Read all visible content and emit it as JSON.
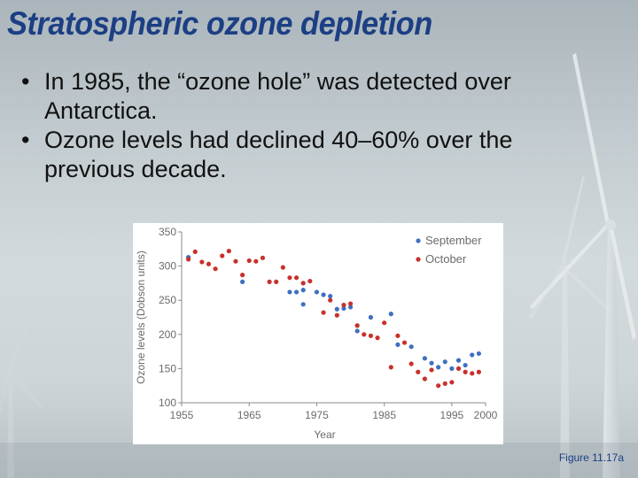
{
  "slide": {
    "title": "Stratospheric ozone depletion",
    "bullets": [
      " In 1985, the “ozone hole” was detected over Antarctica.",
      "Ozone levels had declined 40–60% over the previous decade."
    ],
    "figure_caption": "Figure 11.17a"
  },
  "chart_data": {
    "type": "scatter",
    "title": "",
    "xlabel": "Year",
    "ylabel": "Ozone levels (Dobson units)",
    "xlim": [
      1955,
      2000
    ],
    "ylim": [
      100,
      350
    ],
    "xticks": [
      1955,
      1965,
      1975,
      1985,
      1995,
      2000
    ],
    "yticks": [
      100,
      150,
      200,
      250,
      300,
      350
    ],
    "grid": false,
    "legend_position": "top-right",
    "series": [
      {
        "name": "September",
        "color": "#3f6fc0",
        "points": [
          [
            1956,
            313
          ],
          [
            1964,
            277
          ],
          [
            1971,
            262
          ],
          [
            1972,
            262
          ],
          [
            1973,
            244
          ],
          [
            1973,
            265
          ],
          [
            1975,
            262
          ],
          [
            1976,
            258
          ],
          [
            1977,
            256
          ],
          [
            1978,
            237
          ],
          [
            1979,
            238
          ],
          [
            1980,
            240
          ],
          [
            1981,
            205
          ],
          [
            1983,
            225
          ],
          [
            1986,
            230
          ],
          [
            1987,
            185
          ],
          [
            1989,
            182
          ],
          [
            1991,
            165
          ],
          [
            1992,
            158
          ],
          [
            1993,
            152
          ],
          [
            1994,
            160
          ],
          [
            1995,
            150
          ],
          [
            1996,
            162
          ],
          [
            1997,
            155
          ],
          [
            1998,
            170
          ],
          [
            1999,
            172
          ]
        ]
      },
      {
        "name": "October",
        "color": "#c8302c",
        "points": [
          [
            1956,
            310
          ],
          [
            1957,
            321
          ],
          [
            1958,
            306
          ],
          [
            1959,
            303
          ],
          [
            1960,
            296
          ],
          [
            1961,
            315
          ],
          [
            1962,
            322
          ],
          [
            1963,
            307
          ],
          [
            1964,
            287
          ],
          [
            1965,
            308
          ],
          [
            1966,
            307
          ],
          [
            1967,
            312
          ],
          [
            1968,
            277
          ],
          [
            1969,
            277
          ],
          [
            1970,
            298
          ],
          [
            1971,
            283
          ],
          [
            1972,
            283
          ],
          [
            1973,
            275
          ],
          [
            1974,
            278
          ],
          [
            1976,
            232
          ],
          [
            1977,
            250
          ],
          [
            1978,
            228
          ],
          [
            1979,
            243
          ],
          [
            1980,
            245
          ],
          [
            1981,
            213
          ],
          [
            1982,
            200
          ],
          [
            1983,
            198
          ],
          [
            1984,
            195
          ],
          [
            1985,
            217
          ],
          [
            1986,
            152
          ],
          [
            1987,
            198
          ],
          [
            1988,
            188
          ],
          [
            1989,
            157
          ],
          [
            1990,
            145
          ],
          [
            1991,
            135
          ],
          [
            1992,
            148
          ],
          [
            1993,
            125
          ],
          [
            1994,
            128
          ],
          [
            1995,
            130
          ],
          [
            1996,
            150
          ],
          [
            1997,
            145
          ],
          [
            1998,
            143
          ],
          [
            1999,
            145
          ]
        ]
      }
    ]
  }
}
